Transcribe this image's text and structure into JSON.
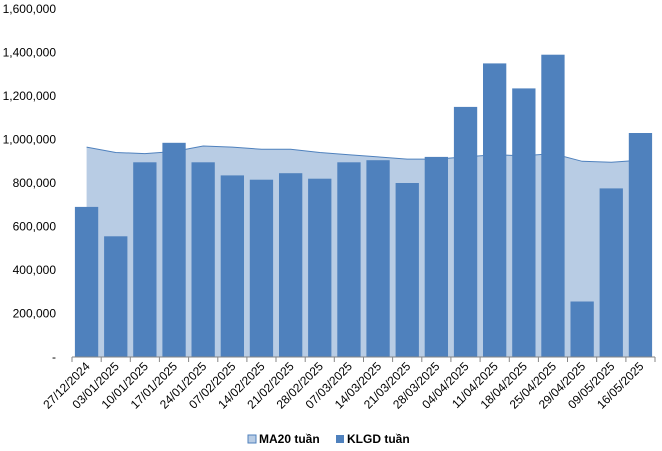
{
  "chart_data": {
    "type": "bar",
    "categories": [
      "27/12/2024",
      "03/01/2025",
      "10/01/2025",
      "17/01/2025",
      "24/01/2025",
      "07/02/2025",
      "14/02/2025",
      "21/02/2025",
      "28/02/2025",
      "07/03/2025",
      "14/03/2025",
      "21/03/2025",
      "28/03/2025",
      "04/04/2025",
      "11/04/2025",
      "18/04/2025",
      "25/04/2025",
      "29/04/2025",
      "09/05/2025",
      "16/05/2025"
    ],
    "series": [
      {
        "name": "MA20 tuần",
        "type": "area",
        "color": "#b8cce4",
        "line_color": "#4f81bd",
        "values": [
          965000,
          940000,
          935000,
          945000,
          970000,
          965000,
          955000,
          955000,
          940000,
          930000,
          920000,
          910000,
          910000,
          920000,
          930000,
          925000,
          935000,
          900000,
          895000,
          905000
        ]
      },
      {
        "name": "KLGD tuần",
        "type": "bar",
        "color": "#4f81bd",
        "values": [
          690000,
          555000,
          895000,
          985000,
          895000,
          835000,
          815000,
          845000,
          820000,
          895000,
          905000,
          800000,
          920000,
          1150000,
          1350000,
          1235000,
          1390000,
          255000,
          775000,
          1030000
        ]
      }
    ],
    "y_ticks": [
      "-",
      "200,000",
      "400,000",
      "600,000",
      "800,000",
      "1,000,000",
      "1,200,000",
      "1,400,000",
      "1,600,000"
    ],
    "ylim": [
      0,
      1600000
    ],
    "grid": false,
    "legend_position": "bottom"
  }
}
